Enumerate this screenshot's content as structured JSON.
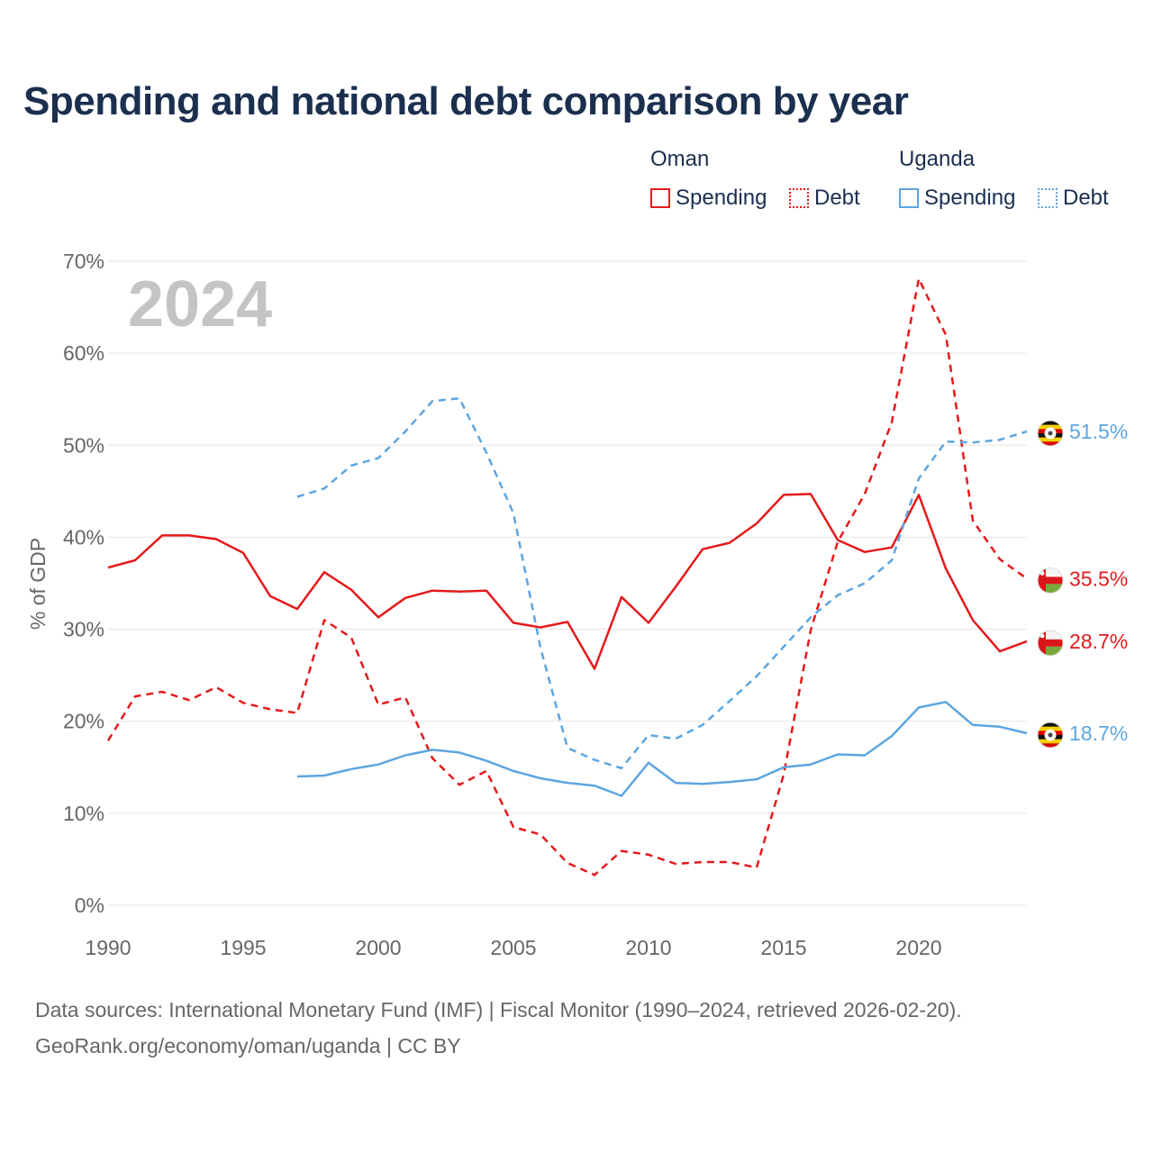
{
  "title": "Spending and national debt comparison by year",
  "legend": {
    "groups": [
      {
        "name": "Oman",
        "color": "#e41a1c",
        "items": [
          {
            "label": "Spending",
            "style": "solid"
          },
          {
            "label": "Debt",
            "style": "dotted"
          }
        ]
      },
      {
        "name": "Uganda",
        "color": "#5da5e0",
        "items": [
          {
            "label": "Spending",
            "style": "solid"
          },
          {
            "label": "Debt",
            "style": "dotted"
          }
        ]
      }
    ]
  },
  "year_watermark": "2024",
  "footer": {
    "line1": "Data sources: International Monetary Fund (IMF) | Fiscal Monitor (1990–2024, retrieved 2026-02-20).",
    "line2": "GeoRank.org/economy/oman/uganda | CC BY"
  },
  "icons": {
    "flag_oman": "oman-flag-icon",
    "flag_uganda": "uganda-flag-icon"
  },
  "chart_data": {
    "type": "line",
    "title": "Spending and national debt comparison by year",
    "xlabel": "",
    "ylabel": "% of GDP",
    "xlim": [
      1990,
      2024
    ],
    "ylim": [
      0,
      70
    ],
    "x_ticks": [
      1990,
      1995,
      2000,
      2005,
      2010,
      2015,
      2020
    ],
    "y_ticks": [
      0,
      10,
      20,
      30,
      40,
      50,
      60,
      70
    ],
    "y_tick_labels": [
      "0%",
      "10%",
      "20%",
      "30%",
      "40%",
      "50%",
      "60%",
      "70%"
    ],
    "grid": true,
    "series": [
      {
        "name": "Oman Spending",
        "country": "Oman",
        "color": "#e41a1c",
        "dash": "solid",
        "start_year": 1990,
        "end_label": "28.7%",
        "values": [
          36.7,
          37.5,
          40.2,
          40.2,
          39.8,
          38.3,
          33.6,
          32.2,
          36.2,
          34.3,
          31.3,
          33.4,
          34.2,
          34.1,
          34.2,
          30.7,
          30.2,
          30.8,
          25.7,
          33.5,
          30.7,
          34.6,
          38.7,
          39.4,
          41.5,
          44.6,
          44.7,
          39.7,
          38.4,
          38.9,
          44.6,
          36.6,
          31.0,
          27.6,
          28.7
        ]
      },
      {
        "name": "Oman Debt",
        "country": "Oman",
        "color": "#e41a1c",
        "dash": "dashed",
        "start_year": 1990,
        "end_label": "35.5%",
        "values": [
          17.9,
          22.7,
          23.2,
          22.3,
          23.7,
          22.0,
          21.3,
          20.9,
          31.0,
          29.1,
          21.8,
          22.6,
          16.0,
          13.1,
          14.6,
          8.5,
          7.7,
          4.6,
          3.3,
          5.9,
          5.5,
          4.5,
          4.7,
          4.7,
          4.1,
          14.2,
          29.9,
          39.5,
          44.7,
          52.5,
          68.1,
          62.0,
          41.8,
          37.6,
          35.5
        ]
      },
      {
        "name": "Uganda Spending",
        "country": "Uganda",
        "color": "#5da5e0",
        "dash": "solid",
        "start_year": 1997,
        "end_label": "18.7%",
        "values": [
          14.0,
          14.1,
          14.8,
          15.3,
          16.3,
          16.9,
          16.6,
          15.7,
          14.6,
          13.8,
          13.3,
          13.0,
          11.9,
          15.5,
          13.3,
          13.2,
          13.4,
          13.7,
          15.0,
          15.3,
          16.4,
          16.3,
          18.4,
          21.5,
          22.1,
          19.6,
          19.4,
          18.7
        ]
      },
      {
        "name": "Uganda Debt",
        "country": "Uganda",
        "color": "#5da5e0",
        "dash": "dashed",
        "start_year": 1997,
        "end_label": "51.5%",
        "values": [
          44.4,
          45.3,
          47.8,
          48.6,
          51.5,
          54.8,
          55.1,
          49.2,
          42.6,
          28.0,
          17.1,
          15.8,
          14.9,
          18.5,
          18.1,
          19.6,
          22.2,
          24.9,
          28.1,
          31.3,
          33.7,
          35.0,
          37.5,
          46.4,
          50.4,
          50.3,
          50.6,
          51.5
        ]
      }
    ]
  }
}
